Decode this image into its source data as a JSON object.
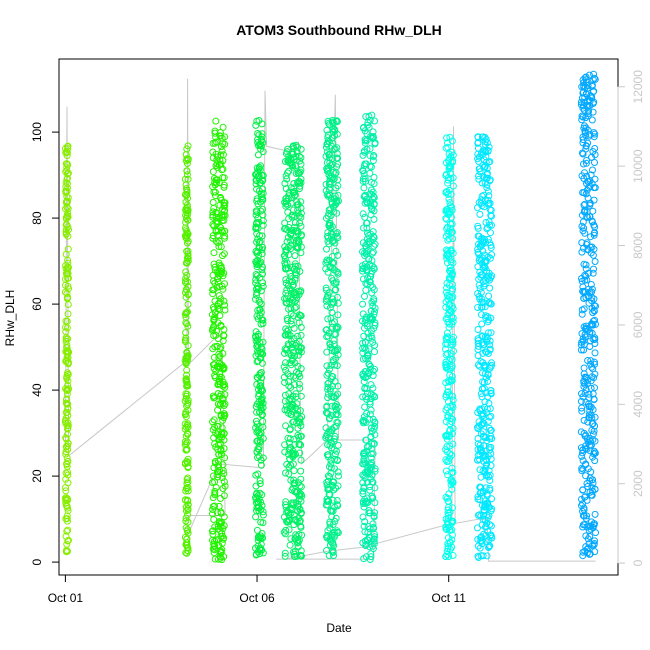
{
  "chart_data": {
    "type": "scatter",
    "title": "ATOM3 Southbound RHw_DLH",
    "xlabel": "Date",
    "ylabel": "RHw_DLH",
    "x_axis": {
      "type": "date",
      "range": [
        "2016-09-30T20:00",
        "2016-10-15T10:00"
      ],
      "ticks": [
        "2016-10-01",
        "2016-10-06",
        "2016-10-11"
      ],
      "tick_labels": [
        "Oct 01",
        "Oct 06",
        "Oct 11"
      ]
    },
    "y_axis": {
      "range": [
        -3,
        117
      ],
      "ticks": [
        0,
        20,
        40,
        60,
        80,
        100
      ],
      "tick_labels": [
        "0",
        "20",
        "40",
        "60",
        "80",
        "100"
      ]
    },
    "y2_axis": {
      "label": "",
      "color": "#c8c8c8",
      "range": [
        -300,
        12700
      ],
      "ticks": [
        0,
        2000,
        4000,
        6000,
        8000,
        10000,
        12000
      ],
      "tick_labels": [
        "0",
        "2000",
        "4000",
        "6000",
        "8000",
        "10000",
        "12000"
      ]
    },
    "series": [
      {
        "start": "2016-10-01T00:00",
        "end": "2016-10-01T02:00",
        "y_min": 2,
        "y_max": 97,
        "color": "#88EE00"
      },
      {
        "start": "2016-10-04T03:00",
        "end": "2016-10-04T05:00",
        "y_min": 1.5,
        "y_max": 97,
        "color": "#55F000"
      },
      {
        "start": "2016-10-04T20:00",
        "end": "2016-10-05T04:00",
        "y_min": 0.5,
        "y_max": 103,
        "color": "#22F200"
      },
      {
        "start": "2016-10-05T23:00",
        "end": "2016-10-06T04:00",
        "y_min": 1.5,
        "y_max": 103,
        "color": "#00F044"
      },
      {
        "start": "2016-10-06T17:00",
        "end": "2016-10-07T04:00",
        "y_min": 1,
        "y_max": 97,
        "color": "#00F066"
      },
      {
        "start": "2016-10-07T19:00",
        "end": "2016-10-08T03:00",
        "y_min": 1,
        "y_max": 103,
        "color": "#00F08A"
      },
      {
        "start": "2016-10-08T18:00",
        "end": "2016-10-09T02:00",
        "y_min": 0.5,
        "y_max": 104,
        "color": "#00F0AA"
      },
      {
        "start": "2016-10-10T22:00",
        "end": "2016-10-11T03:00",
        "y_min": 1,
        "y_max": 99,
        "color": "#00FFEE"
      },
      {
        "start": "2016-10-11T18:00",
        "end": "2016-10-12T03:00",
        "y_min": 1,
        "y_max": 99,
        "color": "#00E8FF"
      },
      {
        "start": "2016-10-14T11:00",
        "end": "2016-10-14T20:00",
        "y_min": 1,
        "y_max": 114,
        "color": "#00A8FF"
      }
    ],
    "gray_line": {
      "color": "#c8c8c8",
      "axis": "y2",
      "points": [
        [
          "2016-10-01T00:00",
          2800
        ],
        [
          "2016-10-01T01:00",
          11500
        ],
        [
          "2016-10-01T02:00",
          2700
        ],
        [
          "2016-10-04T04:00",
          5100
        ],
        [
          "2016-10-04T04:30",
          12200
        ],
        [
          "2016-10-04T05:00",
          5000
        ],
        [
          "2016-10-04T20:00",
          5600
        ],
        [
          "2016-10-05T02:00",
          5800
        ],
        [
          "2016-10-05T04:00",
          1200
        ],
        [
          "2016-10-04T04:00",
          1200
        ],
        [
          "2016-10-04T04:30",
          700
        ],
        [
          "2016-10-05T00:00",
          2500
        ],
        [
          "2016-10-06T04:00",
          2400
        ],
        [
          "2016-10-06T05:00",
          11900
        ],
        [
          "2016-10-06T06:00",
          10500
        ],
        [
          "2016-10-06T17:00",
          10400
        ],
        [
          "2016-10-07T02:00",
          10600
        ],
        [
          "2016-10-07T03:00",
          4100
        ],
        [
          "2016-10-07T04:00",
          2500
        ],
        [
          "2016-10-07T20:00",
          3100
        ],
        [
          "2016-10-08T01:00",
          11800
        ],
        [
          "2016-10-08T03:00",
          3100
        ],
        [
          "2016-10-09T02:00",
          3100
        ],
        [
          "2016-10-09T01:00",
          100
        ],
        [
          "2016-10-06T12:00",
          100
        ],
        [
          "2016-10-06T18:00",
          100
        ],
        [
          "2016-10-07T20:00",
          300
        ],
        [
          "2016-10-08T18:00",
          400
        ],
        [
          "2016-10-11T02:00",
          1000
        ],
        [
          "2016-10-11T03:00",
          11000
        ],
        [
          "2016-10-11T04:00",
          1000
        ],
        [
          "2016-10-11T18:00",
          1100
        ],
        [
          "2016-10-12T00:00",
          1100
        ],
        [
          "2016-10-12T01:00",
          50
        ],
        [
          "2016-10-14T12:00",
          50
        ],
        [
          "2016-10-14T20:00",
          50
        ]
      ]
    },
    "grid": false,
    "legend": "none"
  }
}
